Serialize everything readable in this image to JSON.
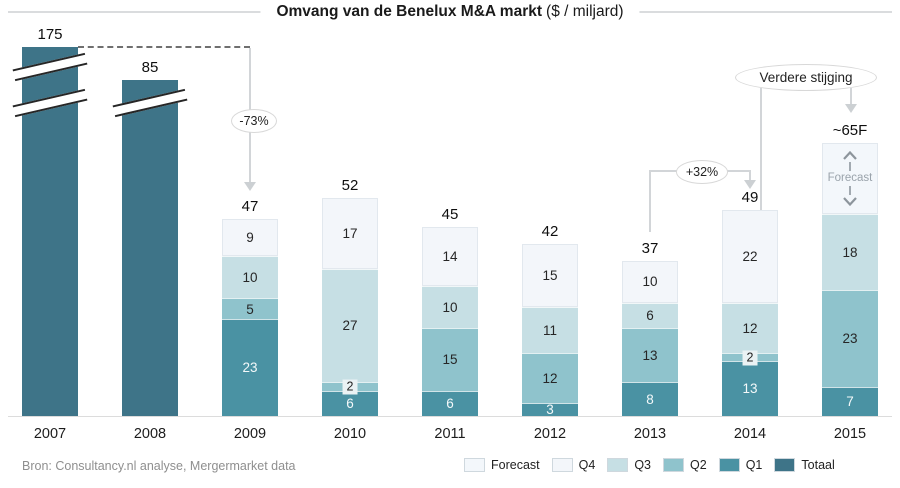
{
  "title": {
    "bold": "Omvang van de Benelux M&A markt",
    "normal": "($ / miljard)"
  },
  "source": "Bron: Consultancy.nl analyse, Mergermarket data",
  "annotations": {
    "drop_label": "-73%",
    "rise_label": "+32%",
    "note_label": "Verdere stijging",
    "forecast_label": "Forecast"
  },
  "legend": [
    {
      "label": "Forecast",
      "color": "#f3f7fb"
    },
    {
      "label": "Q4",
      "color": "#f3f6fa"
    },
    {
      "label": "Q3",
      "color": "#c6dfe4"
    },
    {
      "label": "Q2",
      "color": "#8fc3cc"
    },
    {
      "label": "Q1",
      "color": "#4a92a3"
    },
    {
      "label": "Totaal",
      "color": "#3e7488"
    }
  ],
  "chart_data": {
    "type": "bar",
    "stacked": true,
    "title": "Omvang van de Benelux M&A markt ($ / miljard)",
    "xlabel": "",
    "ylabel": "$ / miljard",
    "grid": false,
    "legend_position": "bottom-right",
    "categories": [
      "2007",
      "2008",
      "2009",
      "2010",
      "2011",
      "2012",
      "2013",
      "2014",
      "2015"
    ],
    "bars": [
      {
        "year": "2007",
        "total": 175,
        "total_label": "175",
        "broken_axis": true,
        "segments": [
          {
            "name": "Totaal",
            "value": 175
          }
        ]
      },
      {
        "year": "2008",
        "total": 85,
        "total_label": "85",
        "broken_axis": true,
        "segments": [
          {
            "name": "Totaal",
            "value": 85
          }
        ]
      },
      {
        "year": "2009",
        "total": 47,
        "total_label": "47",
        "segments": [
          {
            "name": "Q4",
            "value": 9
          },
          {
            "name": "Q3",
            "value": 10
          },
          {
            "name": "Q2",
            "value": 5
          },
          {
            "name": "Q1",
            "value": 23
          }
        ]
      },
      {
        "year": "2010",
        "total": 52,
        "total_label": "52",
        "segments": [
          {
            "name": "Q4",
            "value": 17
          },
          {
            "name": "Q3",
            "value": 27
          },
          {
            "name": "Q2",
            "value": 2
          },
          {
            "name": "Q1",
            "value": 6
          }
        ]
      },
      {
        "year": "2011",
        "total": 45,
        "total_label": "45",
        "segments": [
          {
            "name": "Q4",
            "value": 14
          },
          {
            "name": "Q3",
            "value": 10
          },
          {
            "name": "Q2",
            "value": 15
          },
          {
            "name": "Q1",
            "value": 6
          }
        ]
      },
      {
        "year": "2012",
        "total": 42,
        "total_label": "42",
        "segments": [
          {
            "name": "Q4",
            "value": 15
          },
          {
            "name": "Q3",
            "value": 11
          },
          {
            "name": "Q2",
            "value": 12
          },
          {
            "name": "Q1",
            "value": 3
          }
        ]
      },
      {
        "year": "2013",
        "total": 37,
        "total_label": "37",
        "segments": [
          {
            "name": "Q4",
            "value": 10
          },
          {
            "name": "Q3",
            "value": 6
          },
          {
            "name": "Q2",
            "value": 13
          },
          {
            "name": "Q1",
            "value": 8
          }
        ]
      },
      {
        "year": "2014",
        "total": 49,
        "total_label": "49",
        "segments": [
          {
            "name": "Q4",
            "value": 22
          },
          {
            "name": "Q3",
            "value": 12
          },
          {
            "name": "Q2",
            "value": 2
          },
          {
            "name": "Q1",
            "value": 13
          }
        ]
      },
      {
        "year": "2015",
        "total": 65,
        "total_label": "~65F",
        "forecast": true,
        "segments": [
          {
            "name": "Forecast",
            "value": 17
          },
          {
            "name": "Q3",
            "value": 18
          },
          {
            "name": "Q2",
            "value": 23
          },
          {
            "name": "Q1",
            "value": 7
          }
        ]
      }
    ],
    "annotations": [
      {
        "text": "-73%",
        "from": "2007",
        "to": "2009"
      },
      {
        "text": "+32%",
        "from": "2013",
        "to": "2014"
      },
      {
        "text": "Verdere stijging",
        "from": "2014",
        "to": "2015"
      }
    ]
  }
}
